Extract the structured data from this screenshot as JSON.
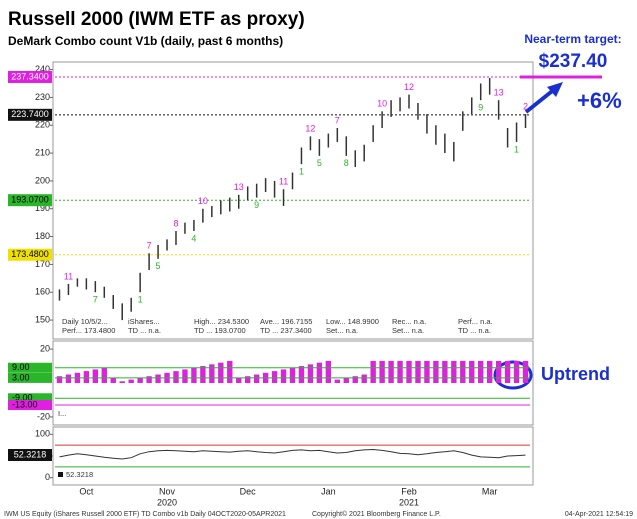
{
  "chart_data": [
    {
      "type": "ohlc",
      "title": "Russell 2000 (IWM ETF as proxy)",
      "subtitle": "DeMark Combo count V1b (daily, past 6 months)",
      "annotations": {
        "target_label": "Near-term target:",
        "target_value": "$237.40",
        "change": "+6%",
        "trend": "Uptrend"
      },
      "categories": [
        null,
        null,
        null,
        "Oct",
        null,
        null,
        null,
        null,
        null,
        null,
        null,
        null,
        "Nov",
        null,
        null,
        null,
        null,
        null,
        null,
        null,
        null,
        "Dec",
        null,
        null,
        null,
        null,
        null,
        null,
        null,
        null,
        "Jan",
        null,
        null,
        null,
        null,
        null,
        null,
        null,
        null,
        "Feb",
        null,
        null,
        null,
        null,
        null,
        null,
        null,
        null,
        "Mar",
        null,
        null,
        null,
        null
      ],
      "categories2": [
        null,
        null,
        null,
        null,
        null,
        null,
        null,
        null,
        null,
        null,
        null,
        null,
        "2020",
        null,
        null,
        null,
        null,
        null,
        null,
        null,
        null,
        null,
        null,
        null,
        null,
        null,
        null,
        null,
        null,
        null,
        null,
        null,
        null,
        null,
        null,
        null,
        null,
        null,
        null,
        "2021",
        null,
        null,
        null,
        null,
        null,
        null,
        null,
        null,
        null,
        null,
        null,
        null,
        null
      ],
      "high": [
        161,
        163,
        165,
        165,
        164,
        162,
        159,
        156,
        158,
        167,
        174,
        177,
        179,
        182,
        185,
        186,
        190,
        191,
        193,
        194,
        195,
        198,
        199,
        201,
        200,
        197,
        203,
        212,
        216,
        215,
        217,
        219,
        216,
        211,
        213,
        220,
        225,
        229,
        230,
        231,
        228,
        224,
        220,
        217,
        214,
        225,
        230,
        235,
        237,
        229,
        219,
        221,
        224
      ],
      "low": [
        157,
        159,
        162,
        161,
        160,
        158,
        154,
        150,
        153,
        160,
        168,
        172,
        175,
        177,
        181,
        182,
        185,
        187,
        188,
        189,
        190,
        193,
        194,
        196,
        194,
        191,
        197,
        206,
        211,
        209,
        212,
        214,
        209,
        205,
        207,
        214,
        219,
        223,
        225,
        226,
        222,
        217,
        213,
        210,
        207,
        218,
        224,
        229,
        231,
        222,
        212,
        214,
        219
      ],
      "setup_labels": [
        null,
        null,
        null,
        null,
        "7",
        null,
        null,
        null,
        null,
        "1",
        null,
        "5",
        null,
        null,
        null,
        "4",
        null,
        null,
        null,
        null,
        null,
        null,
        "9",
        null,
        null,
        null,
        null,
        "1",
        null,
        "5",
        null,
        null,
        "8",
        null,
        null,
        null,
        null,
        null,
        null,
        null,
        null,
        null,
        null,
        null,
        null,
        null,
        null,
        "9",
        null,
        null,
        null,
        "1",
        null
      ],
      "countdown_labels": [
        null,
        "11",
        null,
        null,
        null,
        null,
        null,
        null,
        null,
        null,
        "7",
        null,
        null,
        "8",
        null,
        null,
        "10",
        null,
        null,
        null,
        "13",
        null,
        null,
        null,
        null,
        "11",
        null,
        null,
        "12",
        null,
        null,
        "7",
        null,
        null,
        null,
        null,
        "10",
        null,
        null,
        "12",
        null,
        null,
        null,
        null,
        null,
        null,
        null,
        null,
        null,
        "13",
        null,
        null,
        "2"
      ],
      "up_color": "#2bb52b",
      "down_color": "#e020e0",
      "bar_color": "#333333",
      "ylim": [
        145,
        242
      ],
      "yticks": [
        150,
        160,
        170,
        180,
        190,
        200,
        210,
        220,
        230,
        240
      ],
      "levels": [
        {
          "value": 237.34,
          "label": "237.3400",
          "color": "#e020e0",
          "text_color": "#ffffff"
        },
        {
          "value": 223.74,
          "label": "223.7400",
          "color": "#111111",
          "text_color": "#ffffff"
        },
        {
          "value": 193.07,
          "label": "193.0700",
          "color": "#2bb52b",
          "text_color": "#000000"
        },
        {
          "value": 173.48,
          "label": "173.4800",
          "color": "#f0e000",
          "text_color": "#000000"
        }
      ],
      "legend": [
        [
          "Daily 10/5/2...",
          "iShares...",
          "High... 234.5300",
          "Ave... 196.7155",
          "Low... 148.9900",
          "Rec... n.a.",
          "Perf... n.a."
        ],
        [
          "Perf... 173.4800",
          "TD ... n.a.",
          "TD ... 193.0700",
          "TD ... 237.3400",
          "Set... n.a.",
          "Set... n.a.",
          "TD ... n.a."
        ]
      ]
    },
    {
      "type": "bar",
      "values": [
        4,
        5,
        6,
        7,
        8,
        9,
        3,
        1,
        2,
        3,
        4,
        5,
        6,
        7,
        8,
        9,
        10,
        11,
        12,
        13,
        3,
        4,
        5,
        6,
        7,
        8,
        9,
        10,
        11,
        12,
        13,
        2,
        3,
        4,
        5,
        13,
        13,
        13,
        13,
        13,
        13,
        13,
        13,
        13,
        13,
        13,
        13,
        13,
        13,
        13,
        13,
        13,
        13
      ],
      "color": "#e020e0",
      "ylim": [
        -23,
        23
      ],
      "yticks": [
        20,
        -20
      ],
      "levels": [
        {
          "value": 9,
          "label": "9.00",
          "color": "#2bb52b"
        },
        {
          "value": 3,
          "label": "3.00",
          "color": "#2bb52b"
        },
        {
          "value": -9,
          "label": "-9.00",
          "color": "#2bb52b"
        },
        {
          "value": -13,
          "label": "-13.00",
          "color": "#e020e0"
        }
      ],
      "legend": "I..."
    },
    {
      "type": "line",
      "values": [
        48,
        52,
        55,
        53,
        50,
        47,
        45,
        43,
        46,
        55,
        60,
        62,
        63,
        62,
        61,
        60,
        62,
        61,
        60,
        59,
        61,
        62,
        60,
        58,
        57,
        60,
        63,
        64,
        62,
        63,
        60,
        57,
        58,
        62,
        64,
        65,
        63,
        60,
        56,
        55,
        53,
        55,
        58,
        60,
        62,
        58,
        52,
        48,
        47,
        46,
        50,
        51,
        52
      ],
      "color": "#333333",
      "ylim": [
        -10,
        110
      ],
      "yticks": [
        100,
        50,
        0
      ],
      "refs": [
        {
          "value": 75,
          "color": "#e03030"
        },
        {
          "value": 25,
          "color": "#2bb52b"
        }
      ],
      "last": {
        "value": 52.3218,
        "label": "52.3218"
      },
      "legend": "52.3218"
    }
  ],
  "footer": {
    "left": "IWM US Equity (iShares Russell 2000 ETF) TD Combo v1b  Daily 04OCT2020-05APR2021",
    "center": "Copyright© 2021 Bloomberg Finance L.P.",
    "right": "04-Apr-2021 12:54:19"
  }
}
